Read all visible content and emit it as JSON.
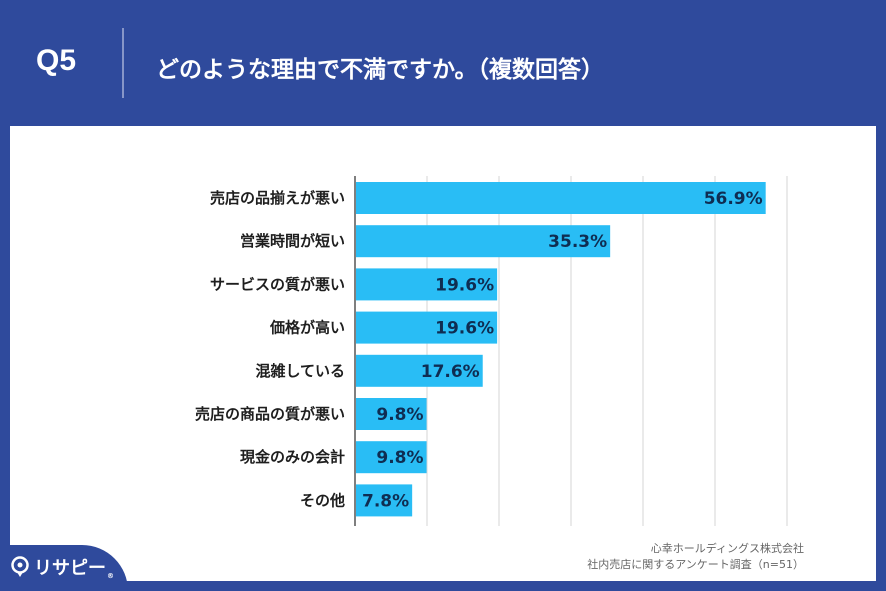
{
  "header": {
    "q_label": "Q5",
    "question": "どのような理由で不満ですか。（複数回答）"
  },
  "source": {
    "line1": "心幸ホールディングス株式会社",
    "line2": "社内売店に関するアンケート調査（n=51）"
  },
  "brand": {
    "logo_text": "リサピー",
    "logo_mark": "®"
  },
  "colors": {
    "header_bg": "#2f4a9c",
    "bar": "#29bdf5",
    "value_text": "#0f2d52"
  },
  "chart_data": {
    "type": "bar",
    "orientation": "horizontal",
    "categories": [
      "売店の品揃えが悪い",
      "営業時間が短い",
      "サービスの質が悪い",
      "価格が高い",
      "混雑している",
      "売店の商品の質が悪い",
      "現金のみの会計",
      "その他"
    ],
    "values": [
      56.9,
      35.3,
      19.6,
      19.6,
      17.6,
      9.8,
      9.8,
      7.8
    ],
    "value_labels": [
      "56.9%",
      "35.3%",
      "19.6%",
      "19.6%",
      "17.6%",
      "9.8%",
      "9.8%",
      "7.8%"
    ],
    "xlim": [
      0,
      60
    ],
    "grid": true,
    "title": "",
    "xlabel": "",
    "ylabel": ""
  }
}
